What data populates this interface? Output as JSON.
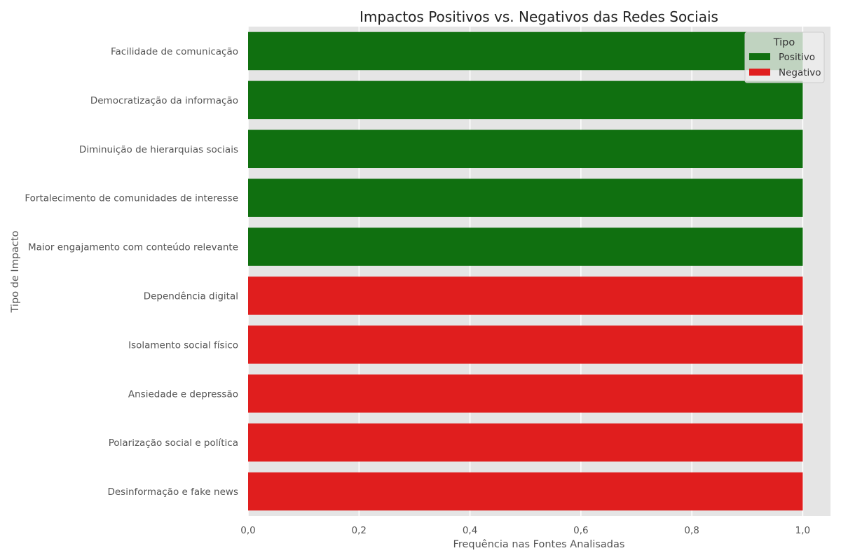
{
  "chart_data": {
    "type": "bar",
    "orientation": "horizontal",
    "title": "Impactos Positivos vs. Negativos das Redes Sociais",
    "xlabel": "Frequência nas Fontes Analisadas",
    "ylabel": "Tipo de Impacto",
    "xlim": [
      0,
      1.05
    ],
    "xticks": [
      0.0,
      0.2,
      0.4,
      0.6,
      0.8,
      1.0
    ],
    "xtick_labels": [
      "0,0",
      "0,2",
      "0,4",
      "0,6",
      "0,8",
      "1,0"
    ],
    "grid": true,
    "legend": {
      "title": "Tipo",
      "placement": "top-right",
      "entries": [
        {
          "label": "Positivo",
          "color": "#107010"
        },
        {
          "label": "Negativo",
          "color": "#e01e1e"
        }
      ]
    },
    "categories": [
      "Facilidade de comunicação",
      "Democratização da informação",
      "Diminuição de hierarquias sociais",
      "Fortalecimento de comunidades de interesse",
      "Maior engajamento com conteúdo relevante",
      "Dependência digital",
      "Isolamento social físico",
      "Ansiedade e depressão",
      "Polarização social e política",
      "Desinformação e fake news"
    ],
    "values": [
      1,
      1,
      1,
      1,
      1,
      1,
      1,
      1,
      1,
      1
    ],
    "groups": [
      "Positivo",
      "Positivo",
      "Positivo",
      "Positivo",
      "Positivo",
      "Negativo",
      "Negativo",
      "Negativo",
      "Negativo",
      "Negativo"
    ]
  }
}
